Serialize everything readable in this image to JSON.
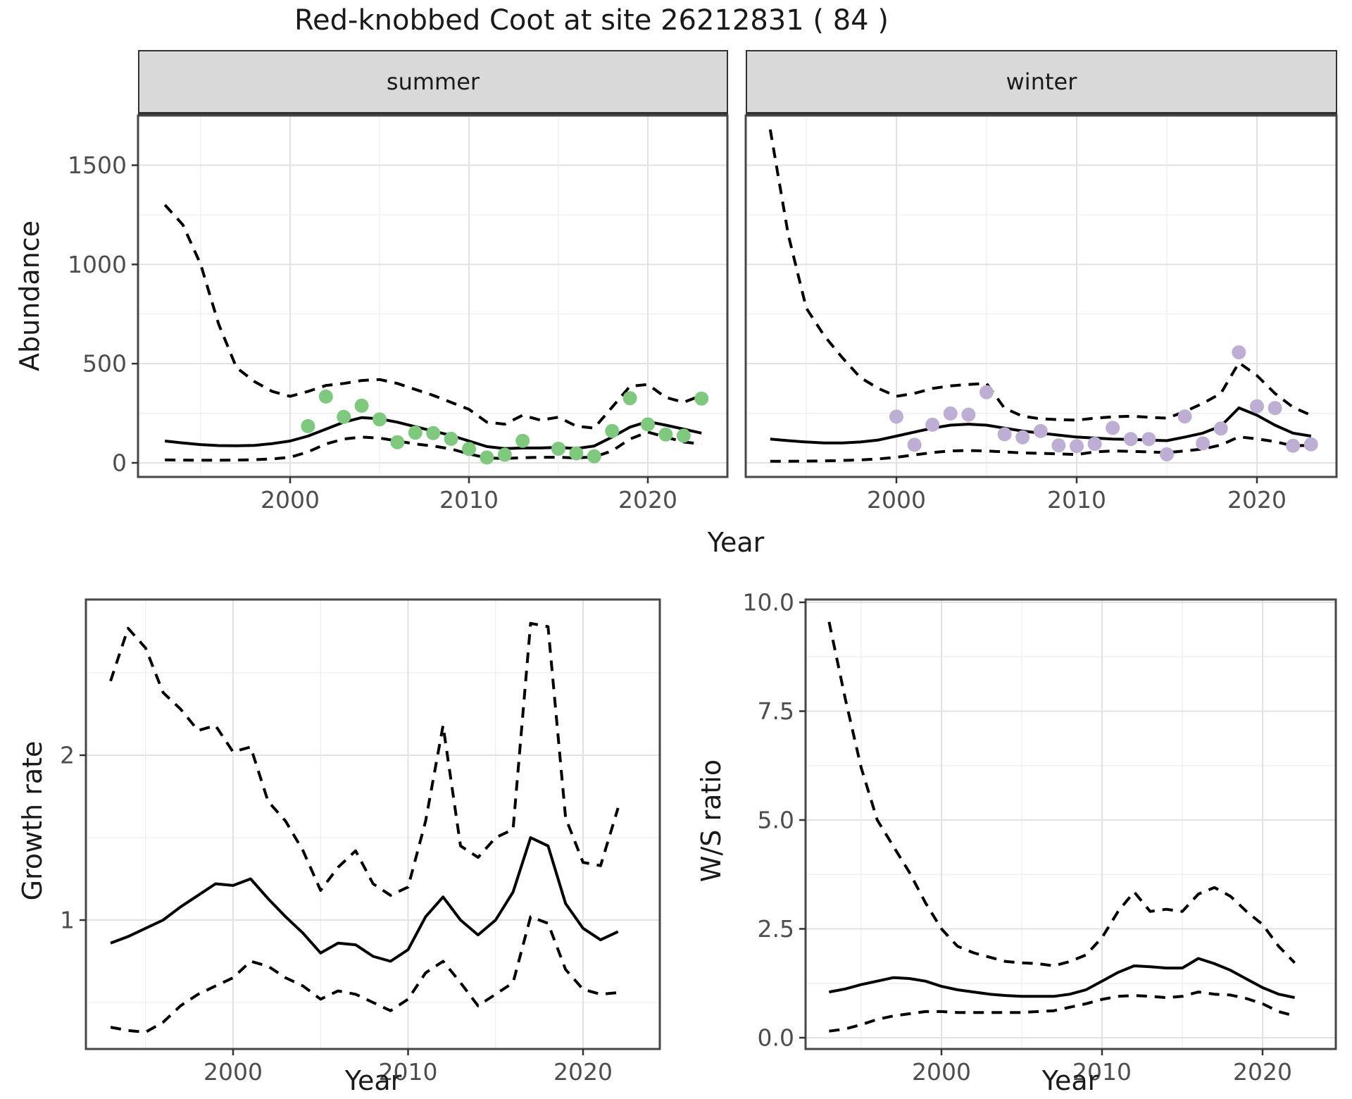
{
  "title": "Red-knobbed Coot at site 26212831 ( 84 )",
  "facets": [
    {
      "label": "summer"
    },
    {
      "label": "winter"
    }
  ],
  "axes": {
    "abundance_label": "Abundance",
    "year_label": "Year",
    "growth_label": "Growth rate",
    "ws_label": "W/S ratio"
  },
  "colors": {
    "summer_point": "#7FC97F",
    "winter_point": "#BEAED4",
    "line": "#000000",
    "strip_bg": "#D9D9D9",
    "grid_major": "#E2E2E2",
    "grid_minor": "#EDEDED",
    "axis_text": "#4D4D4D",
    "panel_border": "#474747",
    "tick_mark": "#333333"
  },
  "chart_data": [
    {
      "id": "abundance-summer",
      "type": "line",
      "facet": "summer",
      "xlabel": "Year",
      "ylabel": "Abundance",
      "xlim": [
        1991.5,
        2024.5
      ],
      "ylim": [
        -75,
        1855
      ],
      "x_ticks": [
        2000,
        2010,
        2020
      ],
      "x_tick_labels": [
        "2000",
        "2010",
        "2020"
      ],
      "x_minor": [
        1995,
        2005,
        2015,
        2025
      ],
      "y_ticks": [
        0,
        500,
        1000,
        1500
      ],
      "y_tick_labels": [
        "0",
        "500",
        "1000",
        "1500"
      ],
      "y_minor": [
        250,
        750,
        1250,
        1750
      ],
      "years": [
        1993,
        1994,
        1995,
        1996,
        1997,
        1998,
        1999,
        2000,
        2001,
        2002,
        2003,
        2004,
        2005,
        2006,
        2007,
        2008,
        2009,
        2010,
        2011,
        2012,
        2013,
        2014,
        2015,
        2016,
        2017,
        2018,
        2019,
        2020,
        2021,
        2022,
        2023
      ],
      "series": [
        {
          "name": "mean",
          "style": "solid",
          "values": [
            110,
            100,
            92,
            87,
            86,
            88,
            97,
            110,
            135,
            170,
            205,
            228,
            222,
            205,
            182,
            160,
            138,
            110,
            82,
            72,
            75,
            75,
            78,
            72,
            85,
            130,
            180,
            208,
            190,
            170,
            150
          ]
        },
        {
          "name": "upper_ci",
          "style": "dashed",
          "values": [
            1300,
            1200,
            1000,
            700,
            480,
            410,
            360,
            335,
            360,
            390,
            400,
            415,
            420,
            400,
            370,
            340,
            305,
            270,
            205,
            195,
            240,
            215,
            230,
            185,
            175,
            280,
            386,
            395,
            330,
            305,
            340
          ]
        },
        {
          "name": "lower_ci",
          "style": "dashed",
          "values": [
            15,
            14,
            13,
            13,
            14,
            16,
            20,
            28,
            55,
            95,
            120,
            130,
            125,
            110,
            95,
            85,
            70,
            45,
            25,
            22,
            26,
            28,
            28,
            25,
            30,
            60,
            120,
            155,
            130,
            105,
            95
          ]
        }
      ],
      "points": {
        "name": "observed-summer",
        "color": "#7FC97F",
        "years": [
          2001,
          2002,
          2003,
          2004,
          2005,
          2006,
          2007,
          2008,
          2009,
          2010,
          2011,
          2012,
          2013,
          2015,
          2016,
          2017,
          2018,
          2019,
          2020,
          2021,
          2022,
          2023
        ],
        "values": [
          185,
          334,
          232,
          288,
          219,
          104,
          152,
          150,
          121,
          70,
          27,
          41,
          111,
          71,
          48,
          33,
          161,
          326,
          194,
          143,
          137,
          324
        ]
      }
    },
    {
      "id": "abundance-winter",
      "type": "line",
      "facet": "winter",
      "xlabel": "Year",
      "ylabel": "Abundance",
      "xlim": [
        1991.6,
        2024.4
      ],
      "ylim": [
        -75,
        1855
      ],
      "x_ticks": [
        2000,
        2010,
        2020
      ],
      "x_tick_labels": [
        "2000",
        "2010",
        "2020"
      ],
      "x_minor": [
        1995,
        2005,
        2015,
        2025
      ],
      "y_ticks": [
        0,
        500,
        1000,
        1500
      ],
      "y_tick_labels": [],
      "y_minor": [
        250,
        750,
        1250,
        1750
      ],
      "years": [
        1993,
        1994,
        1995,
        1996,
        1997,
        1998,
        1999,
        2000,
        2001,
        2002,
        2003,
        2004,
        2005,
        2006,
        2007,
        2008,
        2009,
        2010,
        2011,
        2012,
        2013,
        2014,
        2015,
        2016,
        2017,
        2018,
        2019,
        2020,
        2021,
        2022,
        2023
      ],
      "series": [
        {
          "name": "mean",
          "style": "solid",
          "values": [
            120,
            112,
            105,
            100,
            100,
            105,
            115,
            135,
            155,
            175,
            190,
            195,
            190,
            175,
            160,
            150,
            140,
            130,
            125,
            120,
            118,
            115,
            112,
            130,
            150,
            185,
            277,
            240,
            190,
            150,
            135
          ]
        },
        {
          "name": "upper_ci",
          "style": "dashed",
          "values": [
            1680,
            1150,
            780,
            640,
            530,
            430,
            375,
            335,
            350,
            375,
            388,
            395,
            400,
            275,
            235,
            222,
            218,
            215,
            225,
            232,
            235,
            230,
            225,
            258,
            300,
            350,
            505,
            440,
            350,
            280,
            240
          ]
        },
        {
          "name": "lower_ci",
          "style": "dashed",
          "values": [
            8,
            8,
            9,
            10,
            12,
            15,
            20,
            28,
            40,
            52,
            60,
            62,
            60,
            55,
            50,
            48,
            45,
            42,
            55,
            60,
            58,
            55,
            52,
            60,
            70,
            90,
            131,
            121,
            107,
            86,
            88
          ]
        }
      ],
      "points": {
        "name": "observed-winter",
        "color": "#BEAED4",
        "years": [
          2000,
          2001,
          2002,
          2003,
          2004,
          2005,
          2006,
          2007,
          2008,
          2009,
          2010,
          2011,
          2012,
          2013,
          2014,
          2015,
          2016,
          2017,
          2018,
          2019,
          2020,
          2021,
          2022,
          2023
        ],
        "values": [
          233,
          91,
          192,
          249,
          243,
          356,
          144,
          129,
          160,
          88,
          84,
          96,
          176,
          120,
          120,
          43,
          234,
          98,
          173,
          557,
          285,
          276,
          86,
          93
        ]
      }
    },
    {
      "id": "growth-rate",
      "type": "line",
      "facet": null,
      "xlabel": "Year",
      "ylabel": "Growth rate",
      "xlim": [
        1991.6,
        2024.4
      ],
      "ylim": [
        0.22,
        2.94
      ],
      "x_ticks": [
        2000,
        2010,
        2020
      ],
      "x_tick_labels": [
        "2000",
        "2010",
        "2020"
      ],
      "x_minor": [
        1995,
        2005,
        2015,
        2025
      ],
      "y_ticks": [
        1,
        2
      ],
      "y_tick_labels": [
        "1",
        "2"
      ],
      "y_minor": [
        0.5,
        1.5,
        2.5
      ],
      "years": [
        1993,
        1994,
        1995,
        1996,
        1997,
        1998,
        1999,
        2000,
        2001,
        2002,
        2003,
        2004,
        2005,
        2006,
        2007,
        2008,
        2009,
        2010,
        2011,
        2012,
        2013,
        2014,
        2015,
        2016,
        2017,
        2018,
        2019,
        2020,
        2021,
        2022
      ],
      "series": [
        {
          "name": "mean",
          "style": "solid",
          "values": [
            0.86,
            0.9,
            0.95,
            1.0,
            1.08,
            1.15,
            1.22,
            1.21,
            1.25,
            1.13,
            1.02,
            0.92,
            0.8,
            0.86,
            0.85,
            0.78,
            0.75,
            0.82,
            1.02,
            1.14,
            1.0,
            0.91,
            1.0,
            1.17,
            1.5,
            1.45,
            1.1,
            0.95,
            0.88,
            0.93
          ]
        },
        {
          "name": "upper_ci",
          "style": "dashed",
          "values": [
            2.45,
            2.77,
            2.65,
            2.38,
            2.28,
            2.15,
            2.18,
            2.02,
            2.05,
            1.72,
            1.6,
            1.42,
            1.18,
            1.32,
            1.42,
            1.22,
            1.15,
            1.2,
            1.6,
            2.18,
            1.45,
            1.38,
            1.5,
            1.55,
            2.8,
            2.78,
            1.62,
            1.35,
            1.33,
            1.68
          ]
        },
        {
          "name": "lower_ci",
          "style": "dashed",
          "values": [
            0.35,
            0.33,
            0.32,
            0.38,
            0.48,
            0.55,
            0.6,
            0.65,
            0.75,
            0.72,
            0.65,
            0.6,
            0.52,
            0.57,
            0.55,
            0.5,
            0.45,
            0.52,
            0.68,
            0.75,
            0.62,
            0.48,
            0.55,
            0.62,
            1.02,
            0.98,
            0.7,
            0.58,
            0.55,
            0.56
          ]
        }
      ],
      "points": null
    },
    {
      "id": "ws-ratio",
      "type": "line",
      "facet": null,
      "xlabel": "Year",
      "ylabel": "W/S ratio",
      "xlim": [
        1991.5,
        2024.6
      ],
      "ylim": [
        -0.26,
        10.06
      ],
      "x_ticks": [
        2000,
        2010,
        2020
      ],
      "x_tick_labels": [
        "2000",
        "2010",
        "2020"
      ],
      "x_minor": [
        1995,
        2005,
        2015,
        2025
      ],
      "y_ticks": [
        0,
        2.5,
        5,
        7.5,
        10
      ],
      "y_tick_labels": [
        "0.0",
        "2.5",
        "5.0",
        "7.5",
        "10.0"
      ],
      "y_minor": [
        1.25,
        3.75,
        6.25,
        8.75
      ],
      "years": [
        1993,
        1994,
        1995,
        1996,
        1997,
        1998,
        1999,
        2000,
        2001,
        2002,
        2003,
        2004,
        2005,
        2006,
        2007,
        2008,
        2009,
        2010,
        2011,
        2012,
        2013,
        2014,
        2015,
        2016,
        2017,
        2018,
        2019,
        2020,
        2021,
        2022
      ],
      "series": [
        {
          "name": "mean",
          "style": "solid",
          "values": [
            1.05,
            1.12,
            1.22,
            1.3,
            1.38,
            1.36,
            1.3,
            1.18,
            1.1,
            1.05,
            1.0,
            0.97,
            0.95,
            0.95,
            0.95,
            1.0,
            1.1,
            1.3,
            1.5,
            1.65,
            1.63,
            1.6,
            1.6,
            1.82,
            1.7,
            1.55,
            1.35,
            1.15,
            1.0,
            0.92
          ]
        },
        {
          "name": "upper_ci",
          "style": "dashed",
          "values": [
            9.55,
            7.8,
            6.2,
            5.0,
            4.4,
            3.8,
            3.1,
            2.5,
            2.1,
            1.95,
            1.85,
            1.75,
            1.72,
            1.7,
            1.65,
            1.75,
            1.9,
            2.3,
            2.9,
            3.35,
            2.9,
            2.95,
            2.9,
            3.3,
            3.45,
            3.25,
            2.9,
            2.6,
            2.1,
            1.72
          ]
        },
        {
          "name": "lower_ci",
          "style": "dashed",
          "values": [
            0.15,
            0.2,
            0.3,
            0.42,
            0.5,
            0.55,
            0.6,
            0.6,
            0.58,
            0.58,
            0.58,
            0.58,
            0.58,
            0.6,
            0.62,
            0.7,
            0.78,
            0.88,
            0.95,
            0.97,
            0.95,
            0.92,
            0.95,
            1.05,
            1.0,
            0.98,
            0.9,
            0.78,
            0.6,
            0.5
          ]
        }
      ],
      "points": null
    }
  ]
}
